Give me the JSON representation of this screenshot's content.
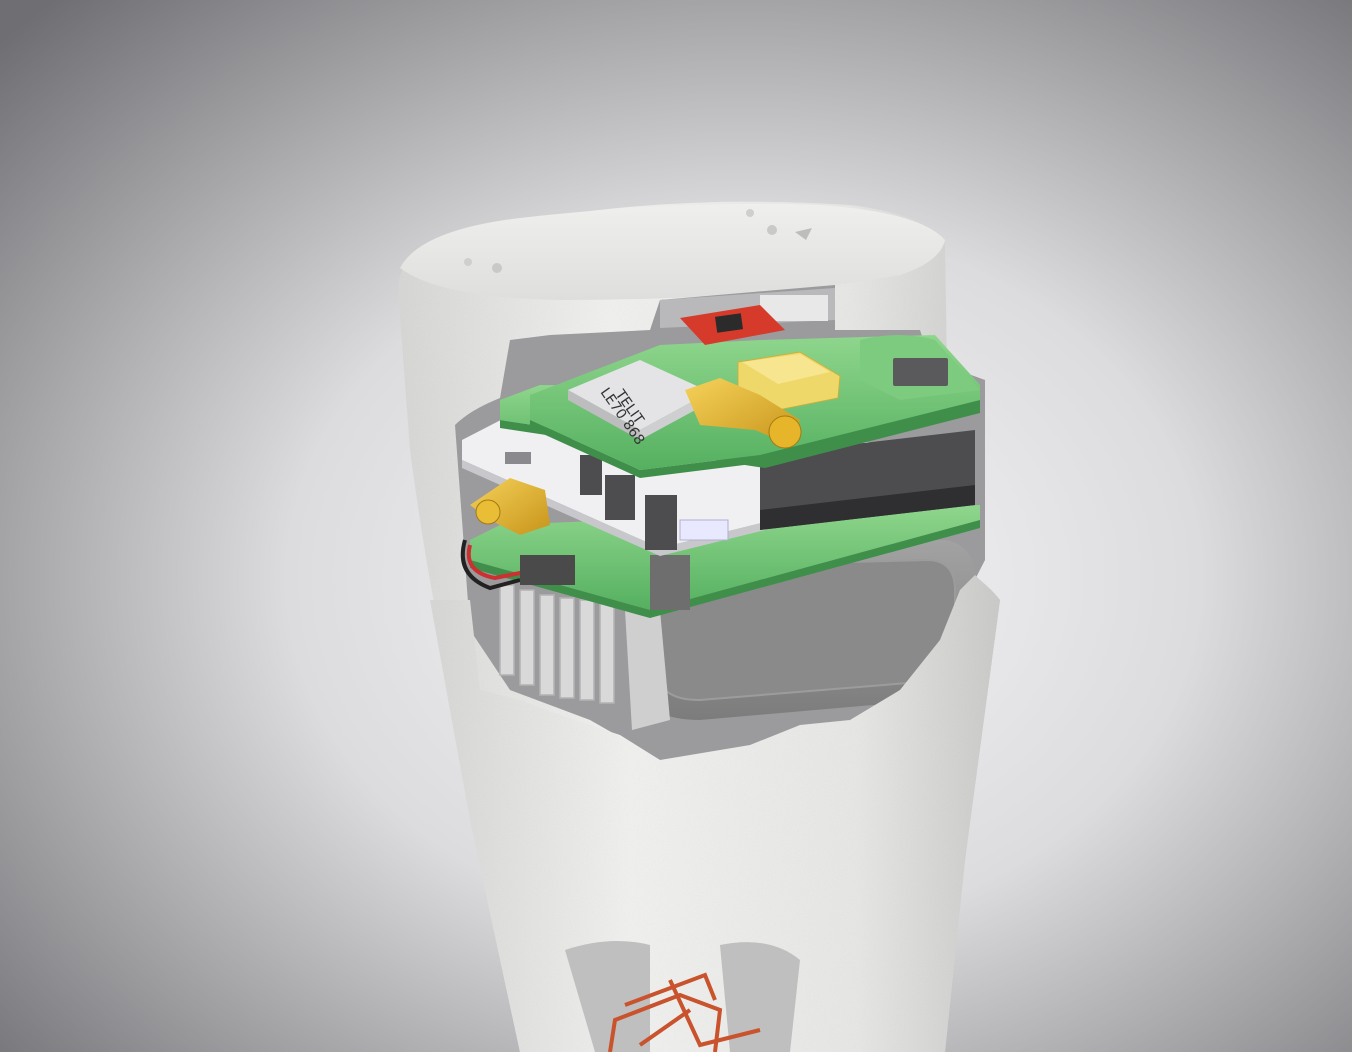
{
  "scene": {
    "module_label_line1": "TELIT",
    "module_label_line2": "LE70 868",
    "colors": {
      "background_center": "#f4f4f6",
      "background_edge": "#7a7a7e",
      "enclosure": "#e8e8e6",
      "pcb_green": "#5fbf6a",
      "pcb_white": "#f0f0f2",
      "connector_gold": "#e6b52a",
      "gps_module": "#efd86a",
      "battery": "#8e8e8e",
      "heatsink": "#d9d9d9",
      "wire_red": "#c8532c",
      "sensor_board_red": "#d63a2a"
    }
  }
}
